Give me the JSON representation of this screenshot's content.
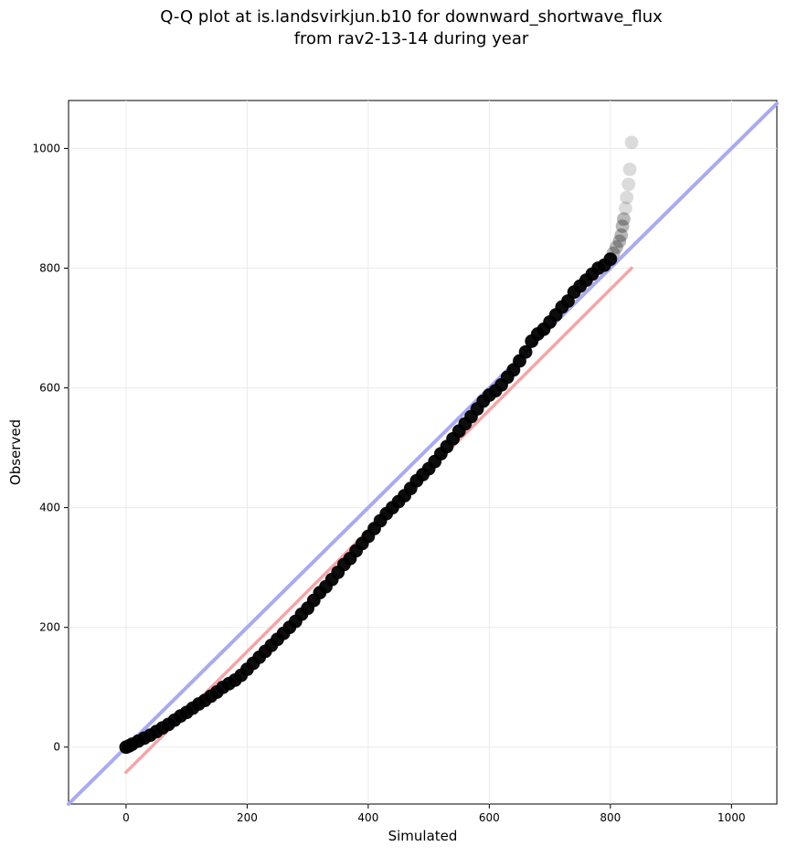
{
  "chart_data": {
    "type": "scatter",
    "title": "Q-Q plot at is.landsvirkjun.b10 for downward_shortwave_flux\nfrom rav2-13-14 during year",
    "xlabel": "Simulated",
    "ylabel": "Observed",
    "xlim": [
      -95,
      1075
    ],
    "ylim": [
      -95,
      1080
    ],
    "xticks": [
      0,
      200,
      400,
      600,
      800,
      1000
    ],
    "yticks": [
      0,
      200,
      400,
      600,
      800,
      1000
    ],
    "grid": true,
    "legend": "none",
    "colors": {
      "points": "#000000",
      "identity_line": "#aaaaf0",
      "fit_line": "#f4a5a8",
      "grid": "#ebebeb"
    },
    "series": [
      {
        "kind": "points",
        "x": [
          0,
          5,
          10,
          20,
          30,
          40,
          50,
          60,
          70,
          80,
          90,
          100,
          110,
          120,
          130,
          140,
          150,
          160,
          170,
          180,
          190,
          200,
          210,
          220,
          230,
          240,
          250,
          260,
          270,
          280,
          290,
          300,
          310,
          320,
          330,
          340,
          350,
          360,
          370,
          380,
          390,
          400,
          410,
          420,
          430,
          440,
          450,
          460,
          470,
          480,
          490,
          500,
          510,
          520,
          530,
          540,
          550,
          560,
          570,
          580,
          590,
          600,
          610,
          620,
          630,
          640,
          650,
          660,
          670,
          680,
          690,
          700,
          710,
          720,
          730,
          740,
          750,
          760,
          770,
          780,
          790,
          800,
          805,
          810,
          815,
          818,
          820,
          822,
          825,
          827,
          830,
          832,
          835
        ],
        "y": [
          0,
          2,
          5,
          10,
          15,
          20,
          26,
          32,
          38,
          45,
          52,
          58,
          65,
          72,
          78,
          85,
          92,
          100,
          106,
          112,
          120,
          130,
          140,
          150,
          160,
          170,
          180,
          190,
          200,
          210,
          222,
          232,
          245,
          258,
          268,
          280,
          292,
          305,
          315,
          328,
          340,
          352,
          365,
          378,
          390,
          400,
          410,
          420,
          432,
          445,
          455,
          465,
          477,
          490,
          502,
          515,
          528,
          540,
          552,
          565,
          578,
          588,
          595,
          605,
          618,
          630,
          645,
          660,
          678,
          690,
          698,
          710,
          722,
          735,
          745,
          760,
          770,
          780,
          790,
          800,
          805,
          815,
          825,
          835,
          845,
          855,
          870,
          882,
          900,
          918,
          940,
          965,
          1010
        ]
      },
      {
        "kind": "line",
        "x": [
          -95,
          1075
        ],
        "y": [
          -95,
          1075
        ]
      },
      {
        "kind": "line",
        "x": [
          0,
          835
        ],
        "y": [
          -42,
          800
        ]
      }
    ]
  }
}
